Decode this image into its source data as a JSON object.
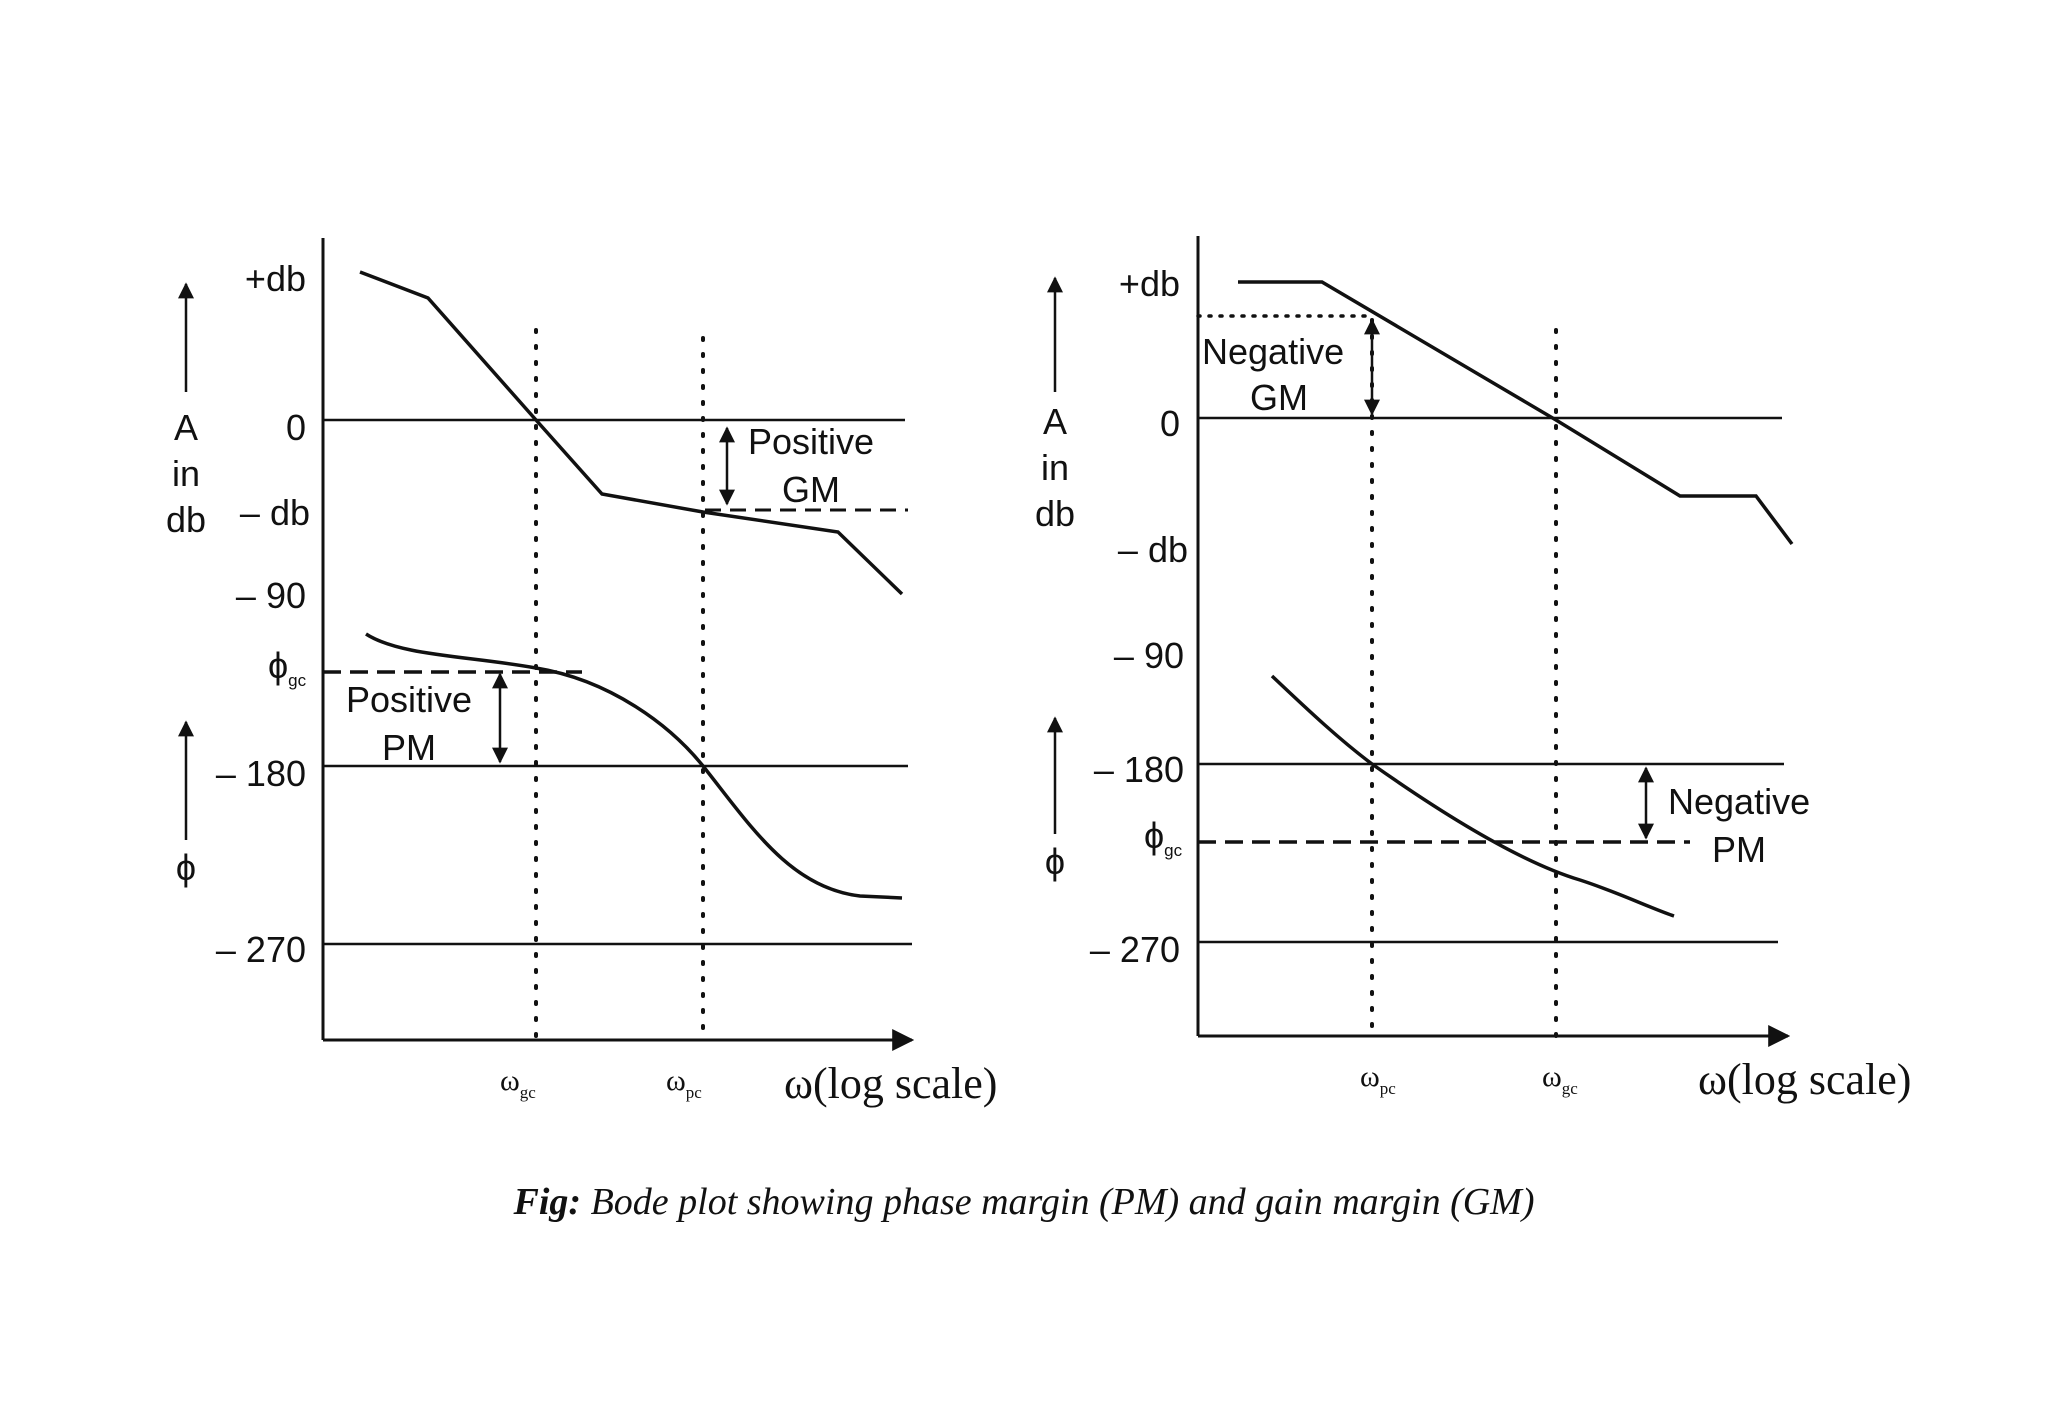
{
  "caption": {
    "prefix": "Fig:",
    "text": " Bode plot showing phase margin (PM) and gain margin (GM)"
  },
  "common": {
    "omega": "ω",
    "phi": "ϕ",
    "gc_sub": "gc",
    "pc_sub": "pc",
    "x_axis_label": "ω(log scale)",
    "gain_axis_label": [
      "A",
      "in",
      "db"
    ],
    "phase_axis_label": "ϕ",
    "ticks": {
      "plus_db": "+db",
      "zero": "0",
      "minus_db": "– db",
      "m90": "– 90",
      "m180": "– 180",
      "m270": "– 270"
    }
  },
  "left_plot": {
    "name": "stable-system",
    "gm_label": [
      "Positive",
      "GM"
    ],
    "pm_label": [
      "Positive",
      "PM"
    ],
    "x_marks": [
      "ω_gc",
      "ω_pc"
    ]
  },
  "right_plot": {
    "name": "unstable-system",
    "gm_label": [
      "Negative",
      "GM"
    ],
    "pm_label": [
      "Negative",
      "PM"
    ],
    "x_marks": [
      "ω_pc",
      "ω_gc"
    ]
  },
  "colors": {
    "ink": "#111111",
    "paper": "#ffffff"
  }
}
